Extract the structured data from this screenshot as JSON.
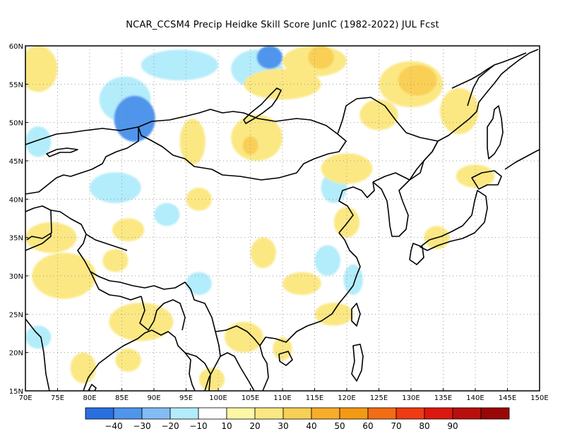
{
  "title": "NCAR_CCSM4 Precip Heidke Skill Score JunIC (1982-2022) JUL Fcst",
  "map": {
    "lon_range": [
      70,
      150
    ],
    "lat_range": [
      15,
      60
    ],
    "lon_ticks": [
      {
        "value": 70,
        "label": "70E"
      },
      {
        "value": 75,
        "label": "75E"
      },
      {
        "value": 80,
        "label": "80E"
      },
      {
        "value": 85,
        "label": "85E"
      },
      {
        "value": 90,
        "label": "90E"
      },
      {
        "value": 95,
        "label": "95E"
      },
      {
        "value": 100,
        "label": "100E"
      },
      {
        "value": 105,
        "label": "105E"
      },
      {
        "value": 110,
        "label": "110E"
      },
      {
        "value": 115,
        "label": "115E"
      },
      {
        "value": 120,
        "label": "120E"
      },
      {
        "value": 125,
        "label": "125E"
      },
      {
        "value": 130,
        "label": "130E"
      },
      {
        "value": 135,
        "label": "135E"
      },
      {
        "value": 140,
        "label": "140E"
      },
      {
        "value": 145,
        "label": "145E"
      },
      {
        "value": 150,
        "label": "150E"
      }
    ],
    "lat_ticks": [
      {
        "value": 15,
        "label": "15N"
      },
      {
        "value": 20,
        "label": "20N"
      },
      {
        "value": 25,
        "label": "25N"
      },
      {
        "value": 30,
        "label": "30N"
      },
      {
        "value": 35,
        "label": "35N"
      },
      {
        "value": 40,
        "label": "40N"
      },
      {
        "value": 45,
        "label": "45N"
      },
      {
        "value": 50,
        "label": "50N"
      },
      {
        "value": 55,
        "label": "55N"
      },
      {
        "value": 60,
        "label": "60N"
      }
    ],
    "grid": true
  },
  "colorbar": {
    "colors": [
      "#2a6fe0",
      "#4f95ec",
      "#82bcf5",
      "#b3ecfa",
      "#ffffff",
      "#fdf8a6",
      "#fbe883",
      "#f9cf54",
      "#f8ad28",
      "#f29a13",
      "#f26d14",
      "#ef3a12",
      "#dc1810",
      "#b80f0c",
      "#9a0606"
    ],
    "labels": [
      "−40",
      "−30",
      "−20",
      "−10",
      "10",
      "20",
      "30",
      "40",
      "50",
      "60",
      "70",
      "80",
      "90"
    ]
  },
  "skill_regions": [
    {
      "lon": 87,
      "lat": 50.5,
      "value": -35,
      "rx": 3.2,
      "ry": 3
    },
    {
      "lon": 85.5,
      "lat": 53,
      "value": -20,
      "rx": 4,
      "ry": 3
    },
    {
      "lon": 94,
      "lat": 57.5,
      "value": -20,
      "rx": 6,
      "ry": 2
    },
    {
      "lon": 108,
      "lat": 58.5,
      "value": -35,
      "rx": 2,
      "ry": 1.5
    },
    {
      "lon": 106,
      "lat": 57,
      "value": -20,
      "rx": 4,
      "ry": 2.5
    },
    {
      "lon": 72,
      "lat": 47.5,
      "value": -20,
      "rx": 2,
      "ry": 2
    },
    {
      "lon": 84,
      "lat": 41.5,
      "value": -20,
      "rx": 4,
      "ry": 2
    },
    {
      "lon": 92,
      "lat": 38,
      "value": -20,
      "rx": 2,
      "ry": 1.5
    },
    {
      "lon": 118,
      "lat": 41.5,
      "value": -20,
      "rx": 2,
      "ry": 2
    },
    {
      "lon": 117,
      "lat": 32,
      "value": -20,
      "rx": 2,
      "ry": 2
    },
    {
      "lon": 121,
      "lat": 29.5,
      "value": -20,
      "rx": 1.5,
      "ry": 2
    },
    {
      "lon": 97,
      "lat": 29,
      "value": -20,
      "rx": 2,
      "ry": 1.5
    },
    {
      "lon": 72,
      "lat": 22,
      "value": -20,
      "rx": 2,
      "ry": 1.5
    },
    {
      "lon": 128,
      "lat": 46,
      "value": -10,
      "rx": 3,
      "ry": 2
    },
    {
      "lon": 121,
      "lat": 57,
      "value": -10,
      "rx": 2,
      "ry": 1.5
    },
    {
      "lon": 73,
      "lat": 44,
      "value": -10,
      "rx": 2.5,
      "ry": 2
    },
    {
      "lon": 100,
      "lat": 35,
      "value": -10,
      "rx": 6,
      "ry": 3
    },
    {
      "lon": 94,
      "lat": 46,
      "value": -10,
      "rx": 3,
      "ry": 2
    },
    {
      "lon": 110,
      "lat": 31,
      "value": -10,
      "rx": 3,
      "ry": 2
    },
    {
      "lon": 104,
      "lat": 33.5,
      "value": -10,
      "rx": 2,
      "ry": 3
    },
    {
      "lon": 79,
      "lat": 35,
      "value": -10,
      "rx": 2,
      "ry": 1.5
    },
    {
      "lon": 88,
      "lat": 29.5,
      "value": -10,
      "rx": 3,
      "ry": 1
    },
    {
      "lon": 128,
      "lat": 54,
      "value": -10,
      "rx": 2,
      "ry": 2
    },
    {
      "lon": 119,
      "lat": 45.5,
      "value": -10,
      "rx": 2,
      "ry": 1.5
    },
    {
      "lon": 132,
      "lat": 24.5,
      "value": -10,
      "rx": 2,
      "ry": 1
    },
    {
      "lon": 82,
      "lat": 21.5,
      "value": -10,
      "rx": 2,
      "ry": 1
    },
    {
      "lon": 122,
      "lat": 17,
      "value": -10,
      "rx": 2,
      "ry": 1.5
    },
    {
      "lon": 72,
      "lat": 57,
      "value": 20,
      "rx": 3,
      "ry": 3
    },
    {
      "lon": 116,
      "lat": 58.5,
      "value": 30,
      "rx": 2,
      "ry": 1.5
    },
    {
      "lon": 115,
      "lat": 58,
      "value": 20,
      "rx": 5,
      "ry": 2
    },
    {
      "lon": 131,
      "lat": 55.5,
      "value": 30,
      "rx": 3,
      "ry": 2
    },
    {
      "lon": 130,
      "lat": 55,
      "value": 20,
      "rx": 5,
      "ry": 3
    },
    {
      "lon": 110,
      "lat": 55,
      "value": 20,
      "rx": 6,
      "ry": 2
    },
    {
      "lon": 137.5,
      "lat": 51.5,
      "value": 20,
      "rx": 3,
      "ry": 3
    },
    {
      "lon": 105,
      "lat": 47,
      "value": 30,
      "rx": 1.2,
      "ry": 1.2
    },
    {
      "lon": 106,
      "lat": 48,
      "value": 20,
      "rx": 4,
      "ry": 3
    },
    {
      "lon": 96,
      "lat": 47.5,
      "value": 20,
      "rx": 2,
      "ry": 3
    },
    {
      "lon": 74,
      "lat": 35,
      "value": 20,
      "rx": 4,
      "ry": 2
    },
    {
      "lon": 76,
      "lat": 30,
      "value": 20,
      "rx": 5,
      "ry": 3
    },
    {
      "lon": 88,
      "lat": 24,
      "value": 20,
      "rx": 5,
      "ry": 2.5
    },
    {
      "lon": 104,
      "lat": 22,
      "value": 20,
      "rx": 3,
      "ry": 2
    },
    {
      "lon": 99,
      "lat": 16.5,
      "value": 20,
      "rx": 2,
      "ry": 1.5
    },
    {
      "lon": 107,
      "lat": 33,
      "value": 20,
      "rx": 2,
      "ry": 2
    },
    {
      "lon": 113,
      "lat": 29,
      "value": 20,
      "rx": 3,
      "ry": 1.5
    },
    {
      "lon": 118,
      "lat": 25,
      "value": 20,
      "rx": 3,
      "ry": 1.5
    },
    {
      "lon": 120,
      "lat": 44,
      "value": 20,
      "rx": 4,
      "ry": 2
    },
    {
      "lon": 120,
      "lat": 37,
      "value": 20,
      "rx": 2,
      "ry": 2
    },
    {
      "lon": 140,
      "lat": 43,
      "value": 20,
      "rx": 3,
      "ry": 1.5
    },
    {
      "lon": 134,
      "lat": 35,
      "value": 20,
      "rx": 2,
      "ry": 1.5
    },
    {
      "lon": 86,
      "lat": 36,
      "value": 20,
      "rx": 2.5,
      "ry": 1.5
    },
    {
      "lon": 79,
      "lat": 18,
      "value": 20,
      "rx": 2,
      "ry": 2
    },
    {
      "lon": 86,
      "lat": 19,
      "value": 20,
      "rx": 2,
      "ry": 1.5
    },
    {
      "lon": 84,
      "lat": 32,
      "value": 20,
      "rx": 2,
      "ry": 1.5
    },
    {
      "lon": 97,
      "lat": 40,
      "value": 20,
      "rx": 2,
      "ry": 1.5
    },
    {
      "lon": 110,
      "lat": 20.5,
      "value": 20,
      "rx": 1.5,
      "ry": 1.5
    },
    {
      "lon": 125,
      "lat": 51,
      "value": 20,
      "rx": 3,
      "ry": 2
    }
  ]
}
